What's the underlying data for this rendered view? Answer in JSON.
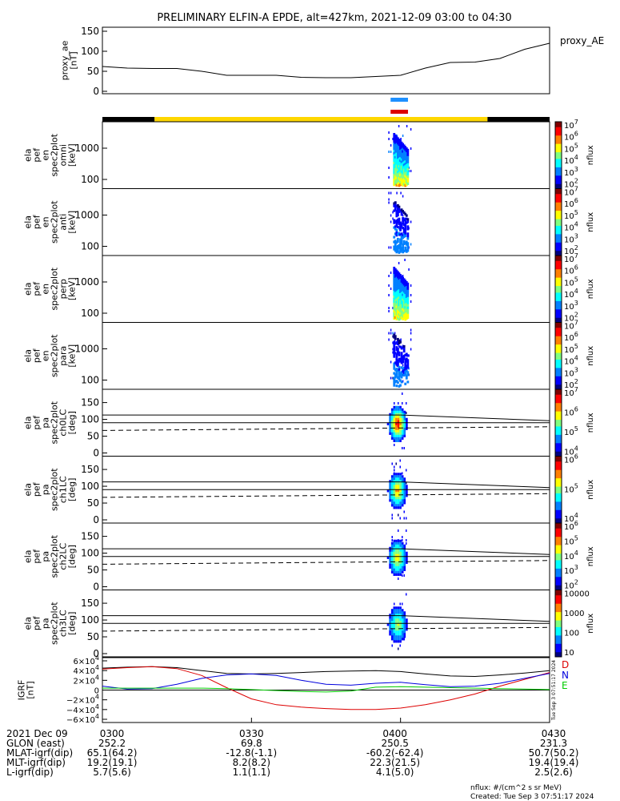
{
  "title": "PRELIMINARY ELFIN-A EPDE, alt=427km, 2021-12-09 03:00 to 04:30",
  "chart_data": {
    "type": "spectrogram",
    "time_range": [
      "2021-12-09 03:00",
      "2021-12-09 04:30"
    ],
    "proxy_ae": {
      "ylabel": [
        "proxy_ae",
        "[nT]"
      ],
      "legend": "proxy_AE",
      "ylim": [
        0,
        150
      ],
      "yticks": [
        "150",
        "100",
        "50",
        "0"
      ],
      "t_minutes": [
        0,
        5,
        10,
        15,
        20,
        25,
        30,
        35,
        40,
        45,
        50,
        55,
        60,
        65,
        70,
        75,
        80,
        85,
        90
      ],
      "values": [
        62,
        58,
        57,
        57,
        50,
        40,
        40,
        40,
        35,
        34,
        34,
        37,
        40,
        58,
        72,
        73,
        82,
        105,
        120
      ]
    },
    "status_bars": [
      {
        "color": "#1e90ff",
        "t_start": 58.0,
        "t_end": 61.5
      },
      {
        "color": "#dd0000",
        "t_start": 58.0,
        "t_end": 61.5
      }
    ],
    "orbit_bar": [
      {
        "color": "#000000",
        "t_start": 0,
        "t_end": 10.5
      },
      {
        "color": "#ffd700",
        "t_start": 10.5,
        "t_end": 77.5
      },
      {
        "color": "#000000",
        "t_start": 77.5,
        "t_end": 90
      }
    ],
    "energy_panels": [
      {
        "ylabel": [
          "ela",
          "pef",
          "en",
          "spec2plot",
          "omni",
          "[keV]"
        ],
        "yticks": [
          "1000",
          "100"
        ],
        "clabel": "nflux",
        "cbar_ticks": [
          "10^2",
          "10^3",
          "10^4",
          "10^5",
          "10^6",
          "10^7"
        ],
        "intensity": 1.0
      },
      {
        "ylabel": [
          "ela",
          "pef",
          "en",
          "spec2plot",
          "anti",
          "[keV]"
        ],
        "yticks": [
          "1000",
          "100"
        ],
        "clabel": "nflux",
        "cbar_ticks": [
          "10^2",
          "10^3",
          "10^4",
          "10^5",
          "10^6",
          "10^7"
        ],
        "intensity": 0.45
      },
      {
        "ylabel": [
          "ela",
          "pef",
          "en",
          "spec2plot",
          "perp",
          "[keV]"
        ],
        "yticks": [
          "1000",
          "100"
        ],
        "clabel": "nflux",
        "cbar_ticks": [
          "10^2",
          "10^3",
          "10^4",
          "10^5",
          "10^6",
          "10^7"
        ],
        "intensity": 1.0
      },
      {
        "ylabel": [
          "ela",
          "pef",
          "en",
          "spec2plot",
          "para",
          "[keV]"
        ],
        "yticks": [
          "1000",
          "100"
        ],
        "clabel": "nflux",
        "cbar_ticks": [
          "10^2",
          "10^3",
          "10^4",
          "10^5",
          "10^6",
          "10^7"
        ],
        "intensity": 0.45
      }
    ],
    "pitch_panels": [
      {
        "ylabel": [
          "ela",
          "pef",
          "pa",
          "spec2plot",
          "ch0LC",
          "[deg]"
        ],
        "yticks": [
          "150",
          "100",
          "50",
          "0"
        ],
        "clabel": "nflux",
        "cbar_ticks": [
          "10^4",
          "10^5",
          "10^6",
          "10^7"
        ],
        "intensity": 1.0
      },
      {
        "ylabel": [
          "ela",
          "pef",
          "pa",
          "spec2plot",
          "ch1LC",
          "[deg]"
        ],
        "yticks": [
          "150",
          "100",
          "50",
          "0"
        ],
        "clabel": "nflux",
        "cbar_ticks": [
          "10^4",
          "10^5",
          "10^6"
        ],
        "intensity": 0.8
      },
      {
        "ylabel": [
          "ela",
          "pef",
          "pa",
          "spec2plot",
          "ch2LC",
          "[deg]"
        ],
        "yticks": [
          "150",
          "100",
          "50",
          "0"
        ],
        "clabel": "nflux",
        "cbar_ticks": [
          "10^2",
          "10^3",
          "10^4",
          "10^5",
          "10^6"
        ],
        "intensity": 0.7
      },
      {
        "ylabel": [
          "ela",
          "pef",
          "pa",
          "spec2plot",
          "ch3LC",
          "[deg]"
        ],
        "yticks": [
          "150",
          "100",
          "50",
          "0"
        ],
        "clabel": "nflux",
        "cbar_ticks": [
          "10",
          "100",
          "1000",
          "10000"
        ],
        "intensity": 0.6
      }
    ],
    "igrf": {
      "ylabel": [
        "IGRF",
        "[nT]"
      ],
      "yticks": [
        "6×10^4",
        "4×10^4",
        "2×10^4",
        "0",
        "−2×10^4",
        "−4×10^4",
        "−6×10^4"
      ],
      "ylim": [
        -60000,
        60000
      ],
      "legend": [
        {
          "name": "D",
          "color": "#dd0000"
        },
        {
          "name": "N",
          "color": "#0000dd"
        },
        {
          "name": "E",
          "color": "#00cc00"
        }
      ],
      "t_minutes": [
        0,
        5,
        10,
        15,
        20,
        25,
        30,
        35,
        40,
        45,
        50,
        55,
        60,
        65,
        70,
        75,
        80,
        85,
        90
      ],
      "total": [
        45000,
        47000,
        48000,
        46000,
        40000,
        34000,
        33000,
        34000,
        36000,
        38000,
        39000,
        40000,
        38000,
        33000,
        29000,
        28000,
        31000,
        35000,
        40000
      ],
      "D": [
        43000,
        46000,
        48000,
        44000,
        30000,
        5000,
        -18000,
        -30000,
        -35000,
        -38000,
        -40000,
        -40000,
        -37000,
        -30000,
        -20000,
        -8000,
        8000,
        22000,
        36000
      ],
      "N": [
        8000,
        2000,
        3000,
        12000,
        24000,
        31000,
        33000,
        30000,
        20000,
        12000,
        10000,
        14000,
        16000,
        11000,
        7000,
        8000,
        14000,
        24000,
        34000
      ],
      "E": [
        4000,
        4000,
        4000,
        4000,
        4000,
        3000,
        1000,
        -1000,
        -3000,
        -4000,
        -2000,
        6000,
        7000,
        6000,
        5000,
        4000,
        3000,
        2000,
        1000
      ],
      "side_text": "Tue Sep  3 07:51:17 2024"
    },
    "x_axis": {
      "tick_labels": [
        "0300",
        "0330",
        "0400",
        "0430"
      ],
      "rows": [
        {
          "label": "2021 Dec 09",
          "values": [
            "0300",
            "0330",
            "0400",
            "0430"
          ]
        },
        {
          "label": "GLON (east)",
          "values": [
            "252.2",
            "69.8",
            "250.5",
            "231.3"
          ]
        },
        {
          "label": "MLAT-igrf(dip)",
          "values": [
            "65.1(64.2)",
            "-12.8(-1.1)",
            "-60.2(-62.4)",
            "50.7(50.2)"
          ]
        },
        {
          "label": "MLT-igrf(dip)",
          "values": [
            "19.2(19.1)",
            "8.2(8.2)",
            "22.3(21.5)",
            "19.4(19.4)"
          ]
        },
        {
          "label": "L-igrf(dip)",
          "values": [
            "5.7(5.6)",
            "1.1(1.1)",
            "4.1(5.0)",
            "2.5(2.6)"
          ]
        }
      ]
    }
  },
  "footer": {
    "units": "nflux: #/(cm^2 s sr MeV)",
    "created": "Created: Tue Sep  3 07:51:17 2024"
  }
}
